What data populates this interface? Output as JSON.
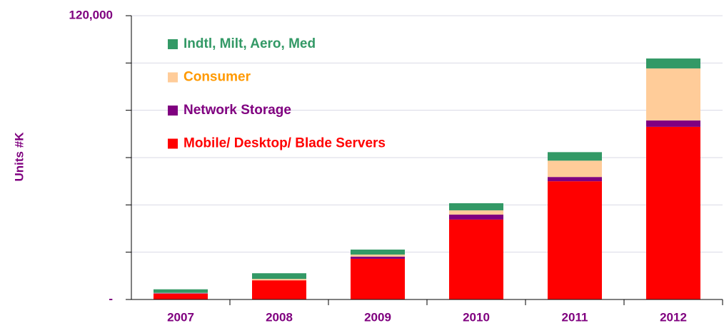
{
  "chart_data": {
    "type": "stacked_bar",
    "y_label": "Units #K",
    "categories": [
      "2007",
      "2008",
      "2009",
      "2010",
      "2011",
      "2012"
    ],
    "series": [
      {
        "name": "Mobile/ Desktop/ Blade Servers",
        "color": "#ff0000",
        "legend_text_color": "#ff0000",
        "values": [
          2400,
          8100,
          17200,
          33800,
          50000,
          73000
        ]
      },
      {
        "name": "Network Storage",
        "color": "#800080",
        "legend_text_color": "#800080",
        "values": [
          200,
          0,
          900,
          2100,
          1800,
          2700
        ]
      },
      {
        "name": "Consumer",
        "color": "#ffcc99",
        "legend_text_color": "#ff9900",
        "values": [
          200,
          600,
          900,
          1800,
          6900,
          22000
        ]
      },
      {
        "name": "Indtl, Milt, Aero, Med",
        "color": "#339966",
        "legend_text_color": "#339966",
        "values": [
          1500,
          2400,
          2100,
          3000,
          3600,
          4200
        ]
      }
    ],
    "ylim": [
      0,
      120000
    ],
    "yticks": [
      {
        "value": 0,
        "label": "-"
      },
      {
        "value": 120000,
        "label": "120,000"
      }
    ],
    "y_minor_ticks": [
      20000,
      40000,
      60000,
      80000,
      100000
    ],
    "grid": true,
    "axis_text_color": "#7f007f"
  }
}
